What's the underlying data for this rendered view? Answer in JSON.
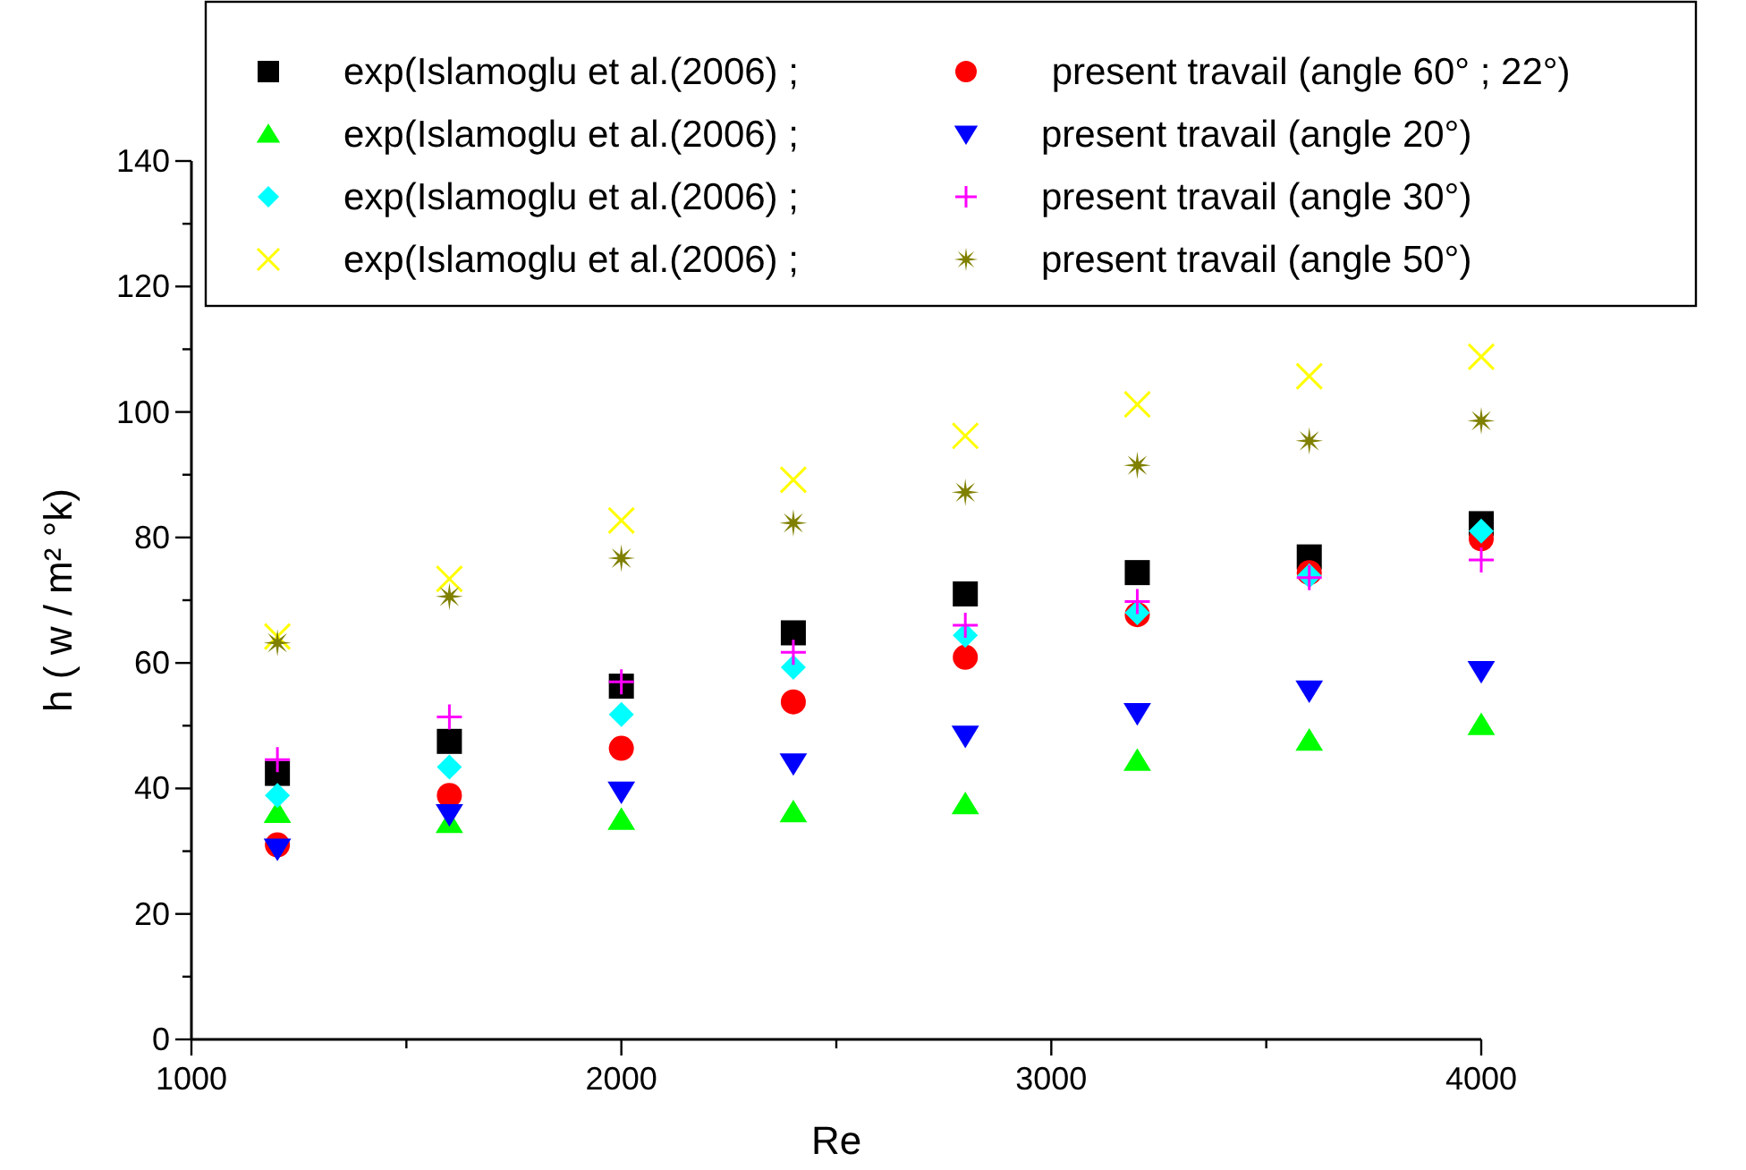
{
  "chart_data": {
    "type": "scatter",
    "xlabel": "Re",
    "ylabel": "h ( w / m² °k)",
    "x": [
      1200,
      1600,
      2000,
      2400,
      2800,
      3200,
      3600,
      4000
    ],
    "xlim": [
      1000,
      4000
    ],
    "xticks": [
      1000,
      {
        "value": 1500,
        "label": null
      },
      2000,
      {
        "value": 2500,
        "label": null
      },
      3000,
      {
        "value": 3500,
        "label": null
      },
      4000
    ],
    "ylim": [
      0,
      140
    ],
    "yticks": [
      0,
      {
        "value": 10,
        "label": null
      },
      20,
      {
        "value": 30,
        "label": null
      },
      40,
      {
        "value": 50,
        "label": null
      },
      60,
      {
        "value": 70,
        "label": null
      },
      80,
      {
        "value": 90,
        "label": null
      },
      100,
      {
        "value": 110,
        "label": null
      },
      120,
      {
        "value": 130,
        "label": null
      },
      140
    ],
    "grid": false,
    "legend": "top",
    "series": [
      {
        "name": "exp(Islamoglu et al.(2006) ;",
        "color": "#000000",
        "marker": "square",
        "values": [
          42.4,
          47.5,
          56.3,
          64.8,
          71,
          74.4,
          76.9,
          82.2
        ]
      },
      {
        "name": " present travail (angle 60° ; 22°)",
        "color": "#ff0000",
        "marker": "circle",
        "values": [
          31,
          38.9,
          46.4,
          53.8,
          60.9,
          67.7,
          74.4,
          79.8
        ]
      },
      {
        "name": "exp(Islamoglu et al.(2006) ;",
        "color": "#00ff00",
        "marker": "triangle",
        "values": [
          36.1,
          34.5,
          35,
          36.2,
          37.5,
          44.4,
          47.6,
          50.1
        ]
      },
      {
        "name": "present travail (angle 20°)",
        "color": "#0000ff",
        "marker": "triangle-down",
        "values": [
          30.4,
          35.9,
          39.5,
          44,
          48.4,
          52,
          55.6,
          58.7
        ]
      },
      {
        "name": "exp(Islamoglu et al.(2006) ;",
        "color": "#00ffff",
        "marker": "diamond",
        "values": [
          38.9,
          43.4,
          51.8,
          59.3,
          64.4,
          68,
          73.9,
          81
        ]
      },
      {
        "name": "present travail (angle 30°)",
        "color": "#ff00ff",
        "marker": "plus",
        "values": [
          44.6,
          51.4,
          57,
          61.7,
          66,
          69.8,
          73.6,
          76.4
        ]
      },
      {
        "name": "exp(Islamoglu et al.(2006) ;",
        "color": "#ffff00",
        "marker": "cross",
        "values": [
          64.2,
          73.4,
          82.7,
          89.2,
          96.2,
          101.2,
          105.7,
          108.8
        ]
      },
      {
        "name": "present travail (angle 50°)",
        "color": "#808000",
        "marker": "star",
        "values": [
          63.2,
          70.6,
          76.7,
          82.3,
          87.2,
          91.5,
          95.4,
          98.6
        ]
      }
    ]
  }
}
